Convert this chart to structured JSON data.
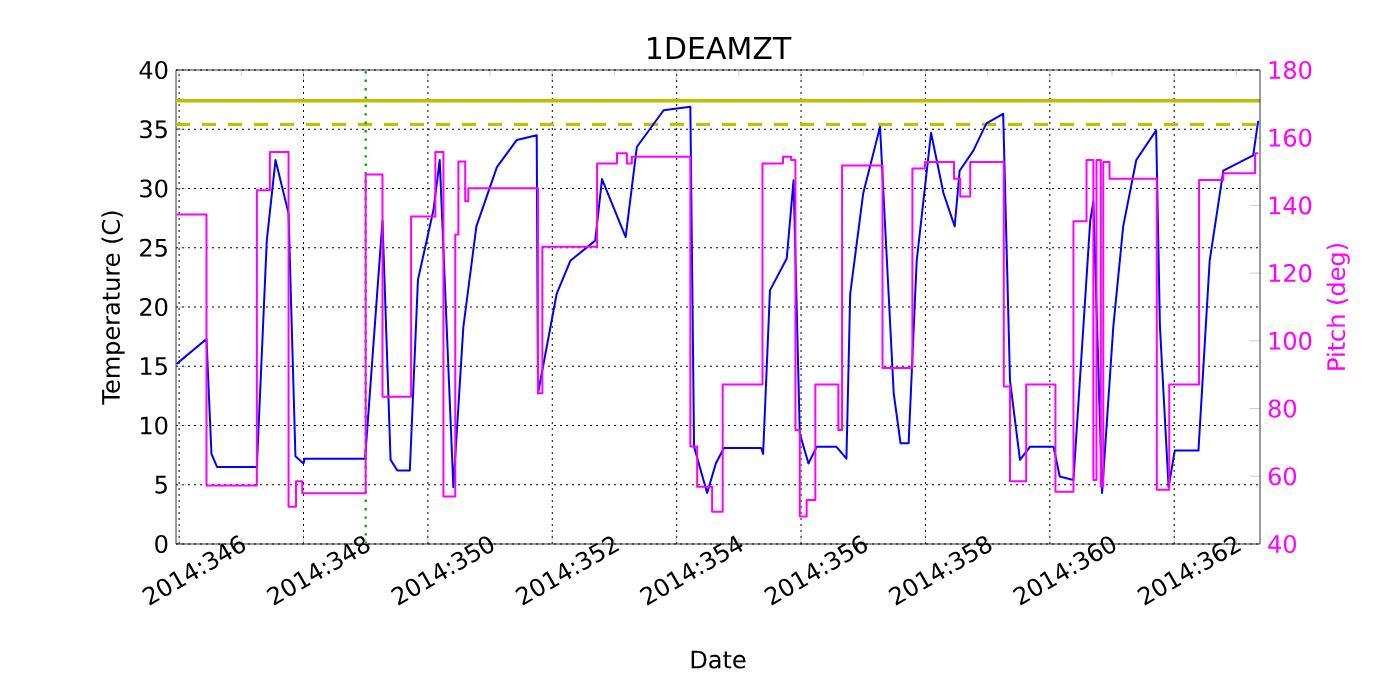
{
  "chart_data": {
    "type": "line",
    "title": "1DEAMZT",
    "xlabel": "Date",
    "ylabel": "Temperature (C)",
    "y2label": "Pitch (deg)",
    "xlim": [
      "2014-12-11T22:48",
      "2014-12-29T09:07"
    ],
    "ylim": [
      0,
      40
    ],
    "y2lim": [
      40,
      180
    ],
    "xticks": [
      {
        "value": "2014-12-12",
        "label": "2014:346"
      },
      {
        "value": "2014-12-13",
        "label": null
      },
      {
        "value": "2014-12-14",
        "label": "2014:348"
      },
      {
        "value": "2014-12-15",
        "label": null
      },
      {
        "value": "2014-12-16",
        "label": "2014:350"
      },
      {
        "value": "2014-12-17",
        "label": null
      },
      {
        "value": "2014-12-18",
        "label": "2014:352"
      },
      {
        "value": "2014-12-19",
        "label": null
      },
      {
        "value": "2014-12-20",
        "label": "2014:354"
      },
      {
        "value": "2014-12-21",
        "label": null
      },
      {
        "value": "2014-12-22",
        "label": "2014:356"
      },
      {
        "value": "2014-12-23",
        "label": null
      },
      {
        "value": "2014-12-24",
        "label": "2014:358"
      },
      {
        "value": "2014-12-25",
        "label": null
      },
      {
        "value": "2014-12-26",
        "label": "2014:360"
      },
      {
        "value": "2014-12-27",
        "label": null
      },
      {
        "value": "2014-12-28",
        "label": "2014:362"
      },
      {
        "value": "2014-12-29",
        "label": null
      }
    ],
    "yticks": [
      0,
      5,
      10,
      15,
      20,
      25,
      30,
      35,
      40
    ],
    "y2ticks": [
      40,
      60,
      80,
      100,
      120,
      140,
      160,
      180
    ],
    "grid": true,
    "series": [
      {
        "color": "#0000ff",
        "x": [
          "2014-12-11T23:02",
          "2014-12-12T10:34",
          "2014-12-12T12:29",
          "2014-12-12T14:38",
          "2014-12-13T06:00",
          "2014-12-13T09:50",
          "2014-12-13T13:12",
          "2014-12-13T18:14",
          "2014-12-13T20:53",
          "2014-12-14T00:00",
          "2014-12-14T00:29",
          "2014-12-14T23:46",
          "2014-12-15T06:29",
          "2014-12-15T09:36",
          "2014-12-15T12:14",
          "2014-12-15T17:02",
          "2014-12-15T20:10",
          "2014-12-16T02:10",
          "2014-12-16T04:34",
          "2014-12-16T09:50",
          "2014-12-16T13:41",
          "2014-12-16T18:43",
          "2014-12-17T02:38",
          "2014-12-17T10:19",
          "2014-12-17T18:00",
          "2014-12-17T18:29",
          "2014-12-18T01:41",
          "2014-12-18T06:58",
          "2014-12-18T16:34",
          "2014-12-18T19:12",
          "2014-12-19T04:19",
          "2014-12-19T08:38",
          "2014-12-19T18:58",
          "2014-12-20T05:17",
          "2014-12-20T06:43",
          "2014-12-20T11:46",
          "2014-12-20T15:07",
          "2014-12-20T18:14",
          "2014-12-21T08:38",
          "2014-12-21T09:22",
          "2014-12-21T12:00",
          "2014-12-21T18:29",
          "2014-12-21T21:07",
          "2014-12-21T23:31",
          "2014-12-22T02:53",
          "2014-12-22T06:00",
          "2014-12-22T13:41",
          "2014-12-22T17:31",
          "2014-12-22T18:58",
          "2014-12-23T00:00",
          "2014-12-23T06:29",
          "2014-12-23T11:46",
          "2014-12-23T14:24",
          "2014-12-23T17:31",
          "2014-12-23T20:38",
          "2014-12-24T02:10",
          "2014-12-24T06:58",
          "2014-12-24T11:17",
          "2014-12-24T13:12",
          "2014-12-24T18:29",
          "2014-12-24T23:31",
          "2014-12-25T06:00",
          "2014-12-25T08:38",
          "2014-12-25T12:29",
          "2014-12-25T16:19",
          "2014-12-26T01:26",
          "2014-12-26T03:50",
          "2014-12-26T09:07",
          "2014-12-26T15:36",
          "2014-12-26T16:48",
          "2014-12-26T20:10",
          "2014-12-27T00:29",
          "2014-12-27T04:19",
          "2014-12-27T09:22",
          "2014-12-27T17:02",
          "2014-12-27T18:29",
          "2014-12-27T21:50",
          "2014-12-28T00:14",
          "2014-12-28T09:22",
          "2014-12-28T13:41",
          "2014-12-28T18:58",
          "2014-12-29T06:29",
          "2014-12-29T08:24"
        ],
        "values": [
          15.2,
          17.3,
          7.6,
          6.5,
          6.5,
          25.6,
          32.4,
          27.9,
          7.4,
          6.8,
          7.2,
          7.2,
          27.3,
          7.1,
          6.2,
          6.2,
          22.3,
          28.2,
          32.4,
          4.8,
          18.3,
          26.8,
          31.8,
          34.1,
          34.5,
          12.7,
          21.1,
          23.9,
          25.6,
          30.8,
          25.9,
          33.5,
          36.6,
          36.9,
          8.2,
          4.3,
          6.8,
          8.1,
          8.1,
          7.6,
          21.4,
          24.1,
          30.7,
          9.3,
          6.8,
          8.2,
          8.2,
          7.2,
          21.1,
          29.6,
          35.2,
          12.7,
          8.5,
          8.5,
          23.9,
          34.7,
          29.6,
          26.8,
          31.5,
          33.2,
          35.5,
          36.3,
          13.8,
          7.1,
          8.2,
          8.2,
          5.7,
          5.4,
          27.3,
          28.9,
          4.3,
          18.3,
          26.8,
          32.4,
          34.9,
          18.4,
          4.8,
          7.9,
          7.9,
          23.9,
          31.5,
          32.8,
          35.7
        ]
      },
      {
        "type": "step",
        "axis": "y2",
        "color": "#ff00ff",
        "x": [
          "2014-12-11T23:02",
          "2014-12-12T10:34",
          "2014-12-13T06:00",
          "2014-12-13T11:02",
          "2014-12-13T18:14",
          "2014-12-13T21:07",
          "2014-12-13T23:31",
          "2014-12-15T00:00",
          "2014-12-15T06:29",
          "2014-12-15T17:31",
          "2014-12-16T02:53",
          "2014-12-16T06:00",
          "2014-12-16T10:34",
          "2014-12-16T11:46",
          "2014-12-16T14:24",
          "2014-12-16T15:36",
          "2014-12-17T18:29",
          "2014-12-17T20:10",
          "2014-12-18T17:17",
          "2014-12-19T00:58",
          "2014-12-19T04:48",
          "2014-12-19T06:43",
          "2014-12-20T05:17",
          "2014-12-20T07:55",
          "2014-12-20T13:41",
          "2014-12-20T17:46",
          "2014-12-21T09:07",
          "2014-12-21T17:02",
          "2014-12-21T20:10",
          "2014-12-21T21:50",
          "2014-12-21T23:31",
          "2014-12-22T02:10",
          "2014-12-22T05:31",
          "2014-12-22T14:24",
          "2014-12-22T15:50",
          "2014-12-23T07:26",
          "2014-12-23T18:58",
          "2014-12-23T23:46",
          "2014-12-24T11:02",
          "2014-12-24T13:26",
          "2014-12-24T17:17",
          "2014-12-25T06:14",
          "2014-12-25T08:38",
          "2014-12-25T14:53",
          "2014-12-26T02:10",
          "2014-12-26T09:07",
          "2014-12-26T14:10",
          "2014-12-26T16:48",
          "2014-12-26T18:00",
          "2014-12-26T19:41",
          "2014-12-26T20:38",
          "2014-12-26T23:02",
          "2014-12-27T17:17",
          "2014-12-27T22:05",
          "2014-12-28T09:36",
          "2014-12-28T18:58",
          "2014-12-29T07:12",
          "2014-12-29T08:24"
        ],
        "values": [
          137.3,
          57.3,
          144.5,
          155.8,
          51.0,
          58.5,
          55.0,
          149.1,
          83.5,
          136.7,
          155.8,
          54.0,
          131.4,
          153.0,
          141.2,
          145.1,
          84.5,
          127.8,
          152.4,
          155.4,
          152.4,
          154.4,
          68.8,
          56.9,
          49.5,
          87.1,
          152.4,
          154.4,
          153.4,
          73.7,
          48.1,
          53.0,
          87.1,
          73.7,
          151.8,
          92.0,
          150.9,
          152.8,
          147.9,
          142.6,
          152.8,
          86.5,
          58.5,
          87.1,
          55.4,
          135.3,
          153.4,
          58.9,
          153.4,
          57.0,
          152.8,
          147.9,
          56.0,
          87.1,
          147.5,
          149.5,
          155.4,
          155.4
        ]
      }
    ],
    "ref_lines": [
      {
        "axis": "y",
        "value": 37.4,
        "color": "#bfbf00",
        "line_style": "solid"
      },
      {
        "axis": "y",
        "value": 35.4,
        "color": "#bfbf00",
        "line_style": "dashed"
      },
      {
        "axis": "x",
        "value": "2014-12-15",
        "color": "#00b000",
        "line_style": "dotted"
      }
    ]
  }
}
